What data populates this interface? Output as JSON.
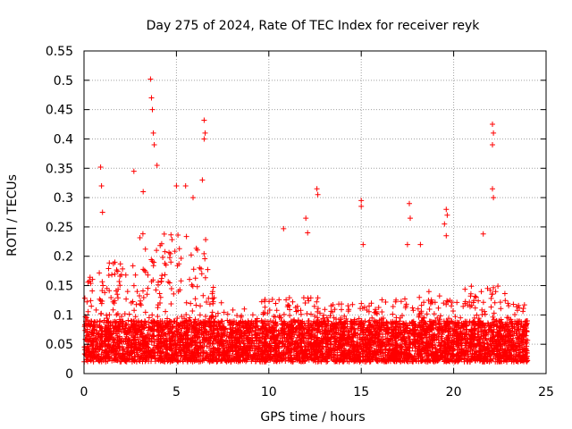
{
  "chart_data": {
    "type": "scatter",
    "title": "Day 275 of 2024, Rate Of TEC Index for receiver reyk",
    "xlabel": "GPS time / hours",
    "ylabel": "ROTI / TECUs",
    "xlim": [
      0,
      25
    ],
    "ylim": [
      0,
      0.55
    ],
    "xticks": [
      0,
      5,
      10,
      15,
      20,
      25
    ],
    "yticks": [
      0,
      0.05,
      0.1,
      0.15,
      0.2,
      0.25,
      0.3,
      0.35,
      0.4,
      0.45,
      0.5,
      0.55
    ],
    "grid": true,
    "marker": "+",
    "marker_color": "#ff0000",
    "series": [
      {
        "name": "ROTI",
        "baseline_band": [
          0.02,
          0.09
        ],
        "data_span_hours": [
          0,
          24
        ],
        "notable_points": [
          {
            "x": 0.9,
            "y": 0.352
          },
          {
            "x": 0.95,
            "y": 0.32
          },
          {
            "x": 1.0,
            "y": 0.275
          },
          {
            "x": 2.7,
            "y": 0.345
          },
          {
            "x": 3.2,
            "y": 0.31
          },
          {
            "x": 3.6,
            "y": 0.502
          },
          {
            "x": 3.65,
            "y": 0.47
          },
          {
            "x": 3.7,
            "y": 0.45
          },
          {
            "x": 3.75,
            "y": 0.41
          },
          {
            "x": 3.8,
            "y": 0.39
          },
          {
            "x": 3.95,
            "y": 0.355
          },
          {
            "x": 5.0,
            "y": 0.32
          },
          {
            "x": 5.5,
            "y": 0.32
          },
          {
            "x": 5.9,
            "y": 0.3
          },
          {
            "x": 6.5,
            "y": 0.432
          },
          {
            "x": 6.55,
            "y": 0.41
          },
          {
            "x": 6.5,
            "y": 0.4
          },
          {
            "x": 6.4,
            "y": 0.33
          },
          {
            "x": 10.8,
            "y": 0.247
          },
          {
            "x": 12.0,
            "y": 0.265
          },
          {
            "x": 12.1,
            "y": 0.24
          },
          {
            "x": 12.6,
            "y": 0.315
          },
          {
            "x": 12.65,
            "y": 0.305
          },
          {
            "x": 15.0,
            "y": 0.295
          },
          {
            "x": 15.0,
            "y": 0.285
          },
          {
            "x": 15.1,
            "y": 0.22
          },
          {
            "x": 17.6,
            "y": 0.29
          },
          {
            "x": 17.65,
            "y": 0.265
          },
          {
            "x": 17.5,
            "y": 0.22
          },
          {
            "x": 18.2,
            "y": 0.22
          },
          {
            "x": 19.6,
            "y": 0.28
          },
          {
            "x": 19.65,
            "y": 0.27
          },
          {
            "x": 19.5,
            "y": 0.255
          },
          {
            "x": 19.6,
            "y": 0.235
          },
          {
            "x": 21.6,
            "y": 0.238
          },
          {
            "x": 22.1,
            "y": 0.425
          },
          {
            "x": 22.15,
            "y": 0.41
          },
          {
            "x": 22.1,
            "y": 0.39
          },
          {
            "x": 22.1,
            "y": 0.315
          },
          {
            "x": 22.15,
            "y": 0.3
          }
        ]
      }
    ]
  }
}
